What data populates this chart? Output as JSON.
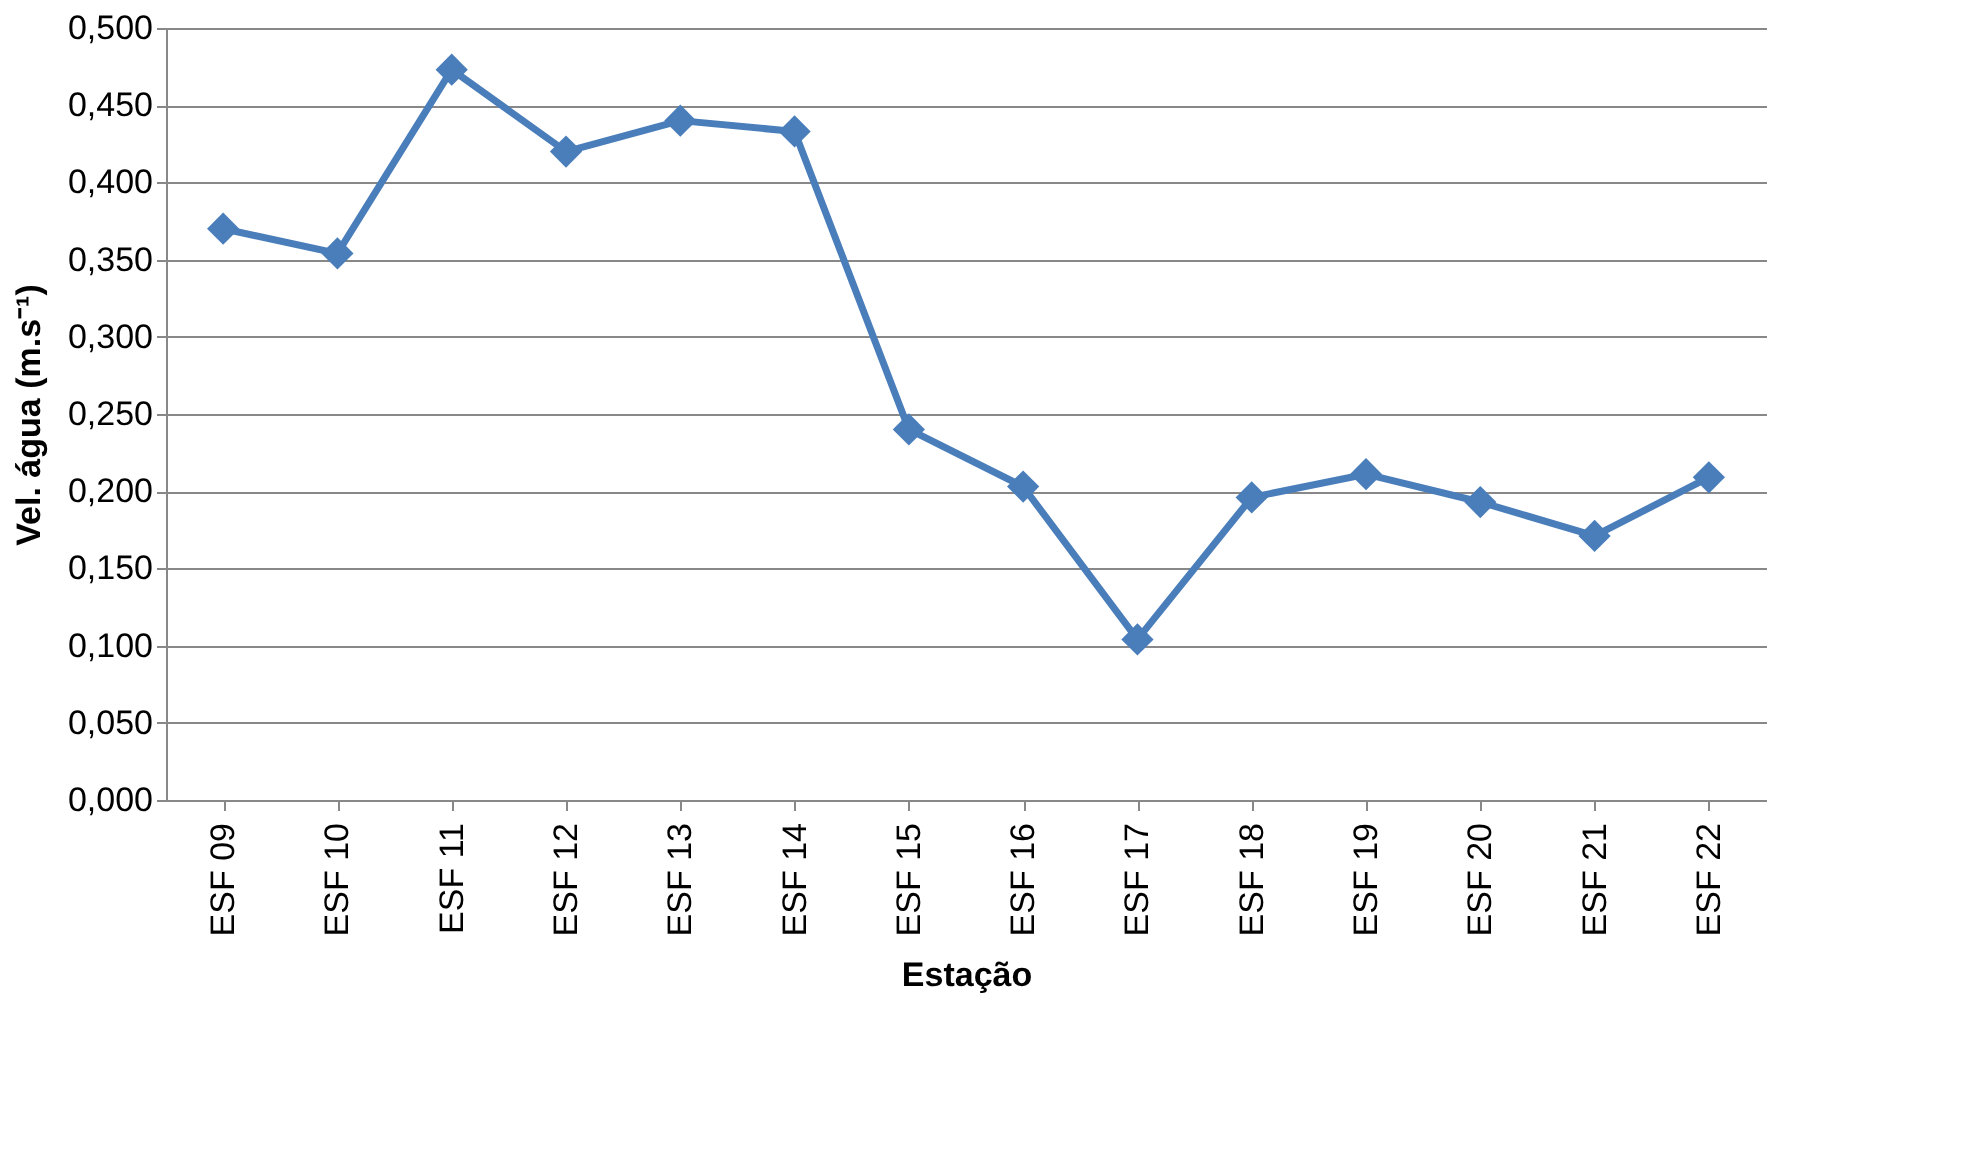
{
  "chart_data": {
    "type": "line",
    "xlabel": "Estação",
    "ylabel": "Vel. água (m.s⁻¹)",
    "categories": [
      "ESF 09",
      "ESF 10",
      "ESF 11",
      "ESF 12",
      "ESF 13",
      "ESF 14",
      "ESF 15",
      "ESF 16",
      "ESF 17",
      "ESF 18",
      "ESF 19",
      "ESF 20",
      "ESF 21",
      "ESF 22"
    ],
    "series": [
      {
        "color": "#4a7ebb",
        "values": [
          0.37,
          0.354,
          0.473,
          0.42,
          0.44,
          0.433,
          0.24,
          0.203,
          0.104,
          0.196,
          0.211,
          0.193,
          0.171,
          0.209
        ]
      }
    ],
    "ylim": [
      0,
      0.5
    ],
    "yticks": [
      {
        "value": 0,
        "label": "0,000"
      },
      {
        "value": 0.05,
        "label": "0,050"
      },
      {
        "value": 0.1,
        "label": "0,100"
      },
      {
        "value": 0.15,
        "label": "0,150"
      },
      {
        "value": 0.2,
        "label": "0,200"
      },
      {
        "value": 0.25,
        "label": "0,250"
      },
      {
        "value": 0.3,
        "label": "0,300"
      },
      {
        "value": 0.35,
        "label": "0,350"
      },
      {
        "value": 0.4,
        "label": "0,400"
      },
      {
        "value": 0.45,
        "label": "0,450"
      },
      {
        "value": 0.5,
        "label": "0,500"
      }
    ],
    "grid": "y",
    "marker": "diamond",
    "line_style": "solid"
  }
}
